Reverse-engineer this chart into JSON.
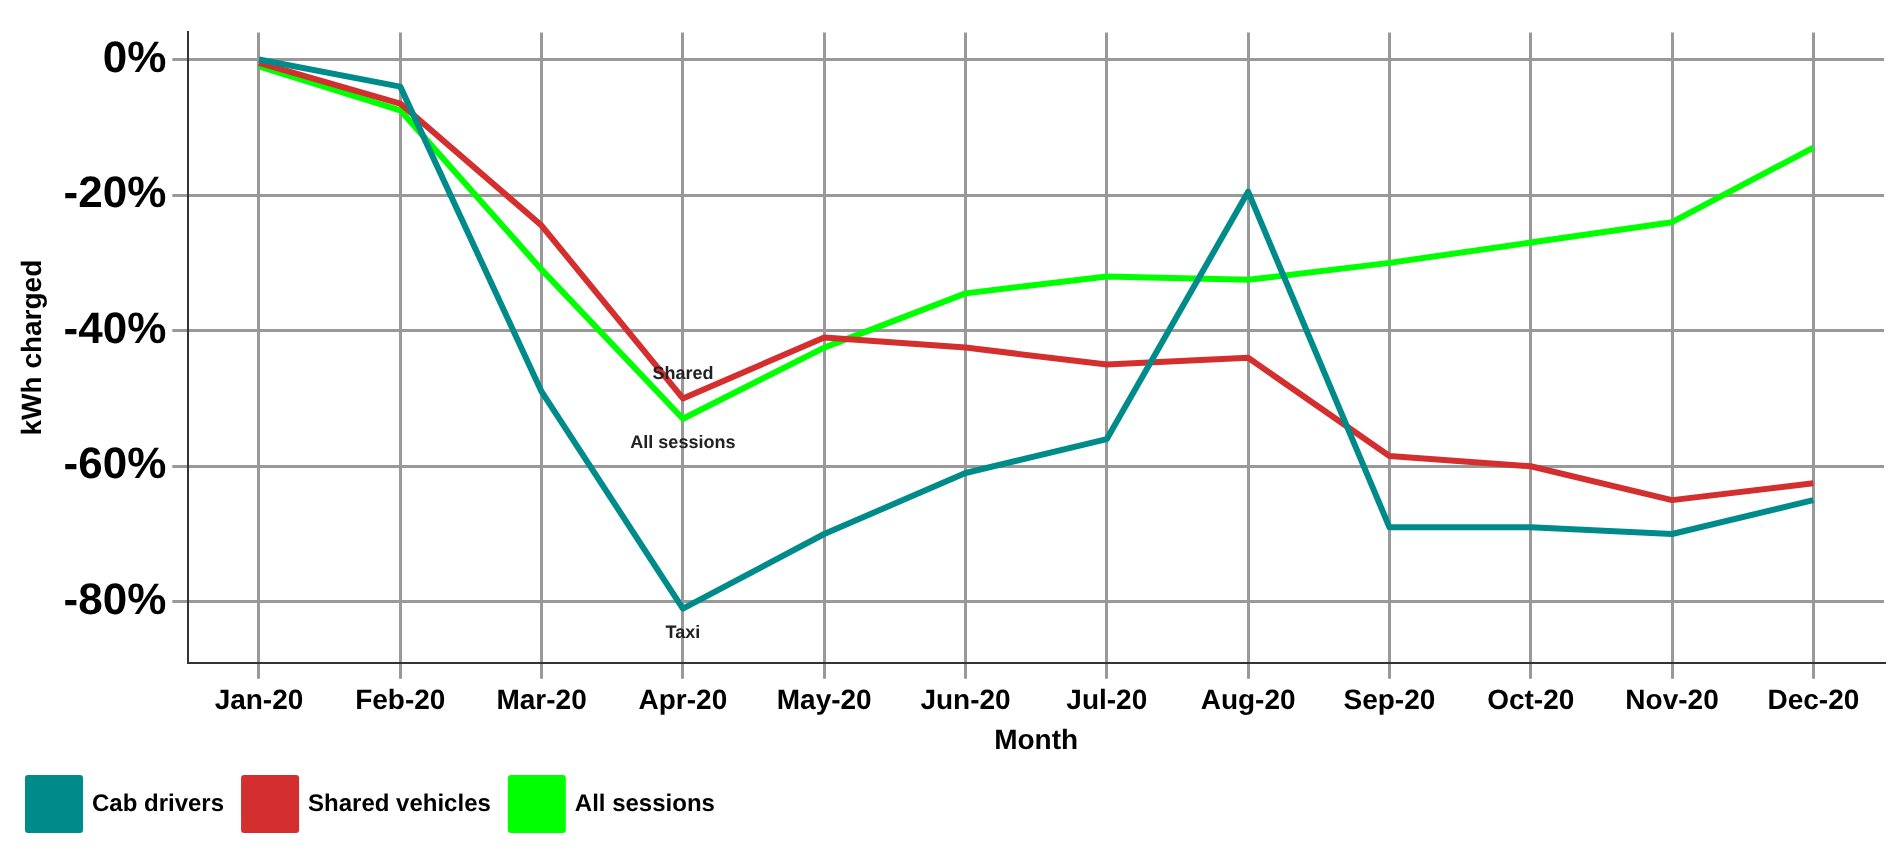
{
  "chart_data": {
    "type": "line",
    "xlabel": "Month",
    "ylabel": "kWh charged",
    "categories": [
      "Jan-20",
      "Feb-20",
      "Mar-20",
      "Apr-20",
      "May-20",
      "Jun-20",
      "Jul-20",
      "Aug-20",
      "Sep-20",
      "Oct-20",
      "Nov-20",
      "Dec-20"
    ],
    "series": [
      {
        "name": "Cab drivers",
        "color": "#008b8b",
        "values": [
          0,
          -4,
          -49,
          -81,
          -70,
          -61,
          -56,
          -19.5,
          -69,
          -69,
          -70,
          -65
        ]
      },
      {
        "name": "Shared vehicles",
        "color": "#d32f2f",
        "values": [
          -0.5,
          -6.5,
          -24.5,
          -50,
          -41,
          -42.5,
          -45,
          -44,
          -58.5,
          -60,
          -65,
          -62.5
        ]
      },
      {
        "name": "All sessions",
        "color": "#00ff00",
        "values": [
          -1,
          -7.5,
          -31,
          -53,
          -42.5,
          -34.5,
          -32,
          -32.5,
          -30,
          -27,
          -24,
          -13
        ]
      }
    ],
    "ylim": [
      -89,
      4
    ],
    "yticks": [
      {
        "value": 0,
        "label": "0%"
      },
      {
        "value": -20,
        "label": "-20%"
      },
      {
        "value": -40,
        "label": "-40%"
      },
      {
        "value": -60,
        "label": "-60%"
      },
      {
        "value": -80,
        "label": "-80%"
      }
    ],
    "grid": true,
    "legend": "bottom left",
    "marker": "none",
    "line_style": "solid",
    "annotations": [
      {
        "text": "Shared",
        "x": "Apr-20",
        "y": -50
      },
      {
        "text": "All sessions",
        "x": "Apr-20",
        "y": -53
      },
      {
        "text": "Taxi",
        "x": "Apr-20",
        "y": -81
      }
    ]
  }
}
